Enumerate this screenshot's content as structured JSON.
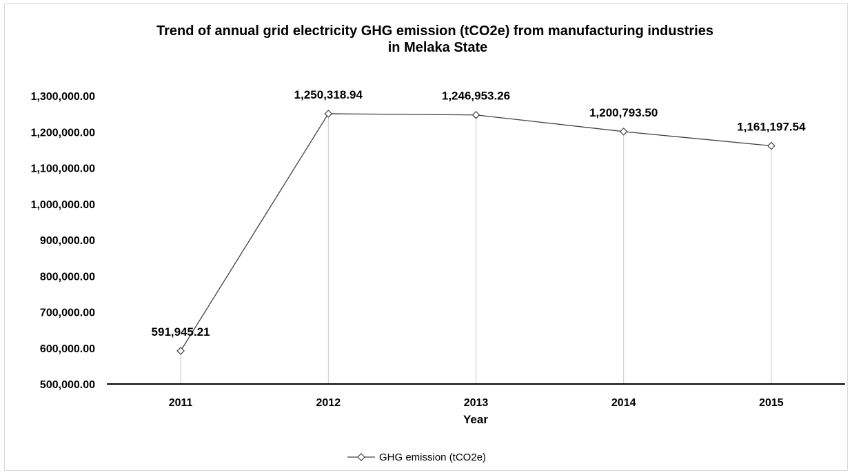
{
  "chart_data": {
    "type": "line",
    "title_lines": [
      "Trend of annual grid electricity GHG emission (tCO2e) from manufacturing industries",
      "in Melaka State"
    ],
    "xlabel": "Year",
    "ylabel": "",
    "categories": [
      "2011",
      "2012",
      "2013",
      "2014",
      "2015"
    ],
    "series": [
      {
        "name": "GHG emission (tCO2e)",
        "values": [
          591945.21,
          1250318.94,
          1246953.26,
          1200793.5,
          1161197.54
        ],
        "labels": [
          "591,945.21",
          "1,250,318.94",
          "1,246,953.26",
          "1,200,793.50",
          "1,161,197.54"
        ],
        "color": "#404040",
        "marker": "diamond"
      }
    ],
    "ylim": [
      500000,
      1300000
    ],
    "y_ticks": [
      {
        "value": 500000,
        "label": "500,000.00"
      },
      {
        "value": 600000,
        "label": "600,000.00"
      },
      {
        "value": 700000,
        "label": "700,000.00"
      },
      {
        "value": 800000,
        "label": "800,000.00"
      },
      {
        "value": 900000,
        "label": "900,000.00"
      },
      {
        "value": 1000000,
        "label": "1,000,000.00"
      },
      {
        "value": 1100000,
        "label": "1,100,000.00"
      },
      {
        "value": 1200000,
        "label": "1,200,000.00"
      },
      {
        "value": 1300000,
        "label": "1,300,000.00"
      }
    ],
    "drop_lines": true,
    "grid": false,
    "legend_position": "bottom"
  }
}
